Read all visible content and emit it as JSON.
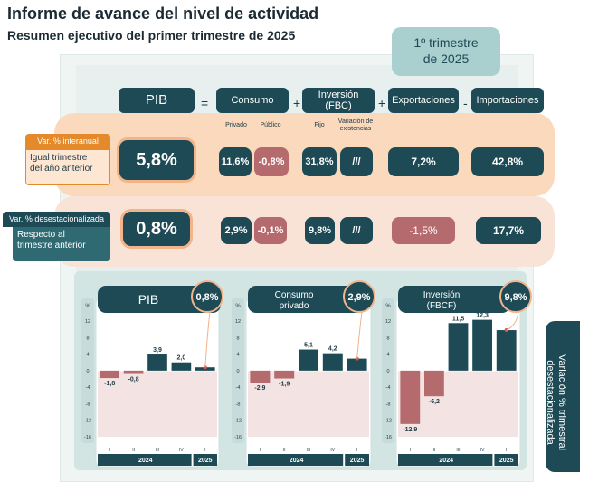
{
  "header": {
    "title": "Informe de avance del nivel de actividad",
    "subtitle": "Resumen ejecutivo del primer trimestre de 2025",
    "quarter_line1": "1º trimestre",
    "quarter_line2": "de 2025"
  },
  "table": {
    "headers": {
      "pib": "PIB",
      "consumo": "Consumo",
      "inversion": "Inversión",
      "inversion_sub": "(FBC)",
      "exportaciones": "Exportaciones",
      "importaciones": "Importaciones"
    },
    "subheaders": {
      "privado": "Privado",
      "publico": "Público",
      "fijo": "Fijo",
      "variacion_line1": "Variación de",
      "variacion_line2": "existencias"
    },
    "operators": {
      "eq": "=",
      "plus1": "+",
      "plus2": "+",
      "minus": "-"
    },
    "row_interanual": {
      "label_head": "Var. % interanual",
      "label_line1": "Igual trimestre",
      "label_line2": "del año anterior",
      "pib": "5,8%",
      "privado": "11,6%",
      "publico": "-0,8%",
      "fijo": "31,8%",
      "existencias": "///",
      "exportaciones": "7,2%",
      "importaciones": "42,8%"
    },
    "row_desest": {
      "label_head": "Var. % desestacionalizada",
      "label_line1": "Respecto al",
      "label_line2": "trimestre anterior",
      "pib": "0,8%",
      "privado": "2,9%",
      "publico": "-0,1%",
      "fijo": "9,8%",
      "existencias": "///",
      "exportaciones": "-1,5%",
      "importaciones": "17,7%"
    }
  },
  "side_label": {
    "line1": "Variación % trimestral",
    "line2": "desestacionalizada"
  },
  "colors": {
    "teal_dark": "#1d4a55",
    "negative": "#b56b6d",
    "orange": "#e58a2a",
    "peach": "#fbd7b8"
  },
  "chart_data": [
    {
      "type": "bar",
      "title": "PIB",
      "badge": "0,8%",
      "categories": [
        "I",
        "II",
        "III",
        "IV",
        "I"
      ],
      "years": [
        "2024",
        "2025"
      ],
      "values": [
        -1.8,
        -0.8,
        3.9,
        2.0,
        0.8
      ],
      "labels": [
        "-1,8",
        "-0,8",
        "3,9",
        "2,0",
        ""
      ],
      "unit_label": "%",
      "yticks": [
        "12",
        "8",
        "4",
        "0",
        "-4",
        "-8",
        "-12",
        "-16"
      ],
      "ylim": [
        -16,
        12
      ]
    },
    {
      "type": "bar",
      "title_line1": "Consumo",
      "title_line2": "privado",
      "badge": "2,9%",
      "categories": [
        "I",
        "II",
        "III",
        "IV",
        "I"
      ],
      "years": [
        "2024",
        "2025"
      ],
      "values": [
        -2.9,
        -1.9,
        5.1,
        4.2,
        2.9
      ],
      "labels": [
        "-2,9",
        "-1,9",
        "5,1",
        "4,2",
        ""
      ],
      "unit_label": "%",
      "yticks": [
        "12",
        "8",
        "4",
        "0",
        "-4",
        "-8",
        "-12",
        "-16"
      ],
      "ylim": [
        -16,
        12
      ]
    },
    {
      "type": "bar",
      "title_line1": "Inversión",
      "title_line2": "(FBCF)",
      "badge": "9,8%",
      "categories": [
        "I",
        "II",
        "III",
        "IV",
        "I"
      ],
      "years": [
        "2024",
        "2025"
      ],
      "values": [
        -12.9,
        -6.2,
        11.5,
        12.3,
        9.8
      ],
      "labels": [
        "-12,9",
        "-6,2",
        "11,5",
        "12,3",
        ""
      ],
      "unit_label": "%",
      "yticks": [
        "12",
        "8",
        "4",
        "0",
        "-4",
        "-8",
        "-12",
        "-16"
      ],
      "ylim": [
        -16,
        12
      ]
    }
  ]
}
